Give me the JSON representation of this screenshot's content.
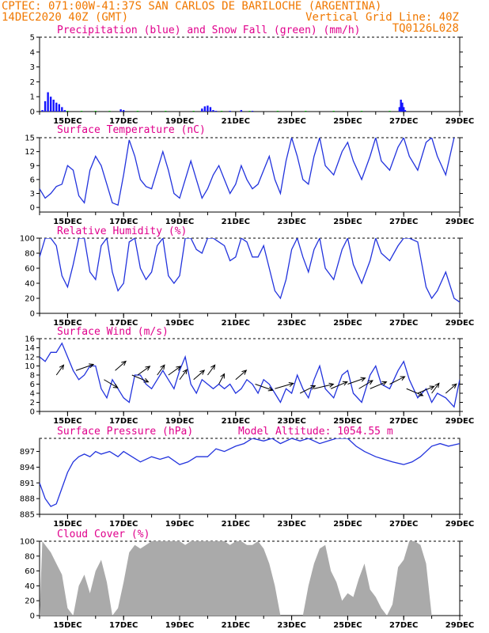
{
  "header": {
    "line1_left": "CPTEC:   071:00W-41:37S  SAN CARLOS DE BARILOCHE (ARGENTINA)",
    "line2_left": "14DEC2020 40Z (GMT)",
    "line2_right": "Vertical Grid Line: 40Z",
    "code": "TQ0126L028"
  },
  "colors": {
    "header": "#f07800",
    "title": "#e0008c",
    "precip": "#1414ff",
    "snow": "#00b400",
    "line": "#2233dd",
    "wind_arrow": "#000000",
    "cloud": "#aaaaaa"
  },
  "x_axis": {
    "tick_labels": [
      "15DEC",
      "17DEC",
      "19DEC",
      "21DEC",
      "23DEC",
      "25DEC",
      "27DEC",
      "29DEC"
    ],
    "tick_days": [
      15,
      17,
      19,
      21,
      23,
      25,
      27,
      29
    ],
    "start_day": 14,
    "end_day": 29
  },
  "chart_data": [
    {
      "id": "precip",
      "type": "bar",
      "title": "Precipitation (blue) and Snow Fall (green) (mm/h)",
      "ylim": [
        0,
        5
      ],
      "yticks": [
        "0",
        "1",
        "2",
        "3",
        "4",
        "5"
      ],
      "series": [
        {
          "name": "Precipitation",
          "x": [
            14.1,
            14.2,
            14.3,
            14.4,
            14.5,
            14.6,
            14.7,
            14.8,
            14.9,
            16.9,
            17.0,
            19.8,
            19.9,
            20.0,
            20.1,
            20.2,
            20.3,
            20.8,
            21.2,
            21.6,
            26.85,
            26.9,
            26.95,
            27.0,
            27.05
          ],
          "values": [
            0.1,
            0.7,
            1.3,
            1.0,
            0.8,
            0.6,
            0.5,
            0.3,
            0.1,
            0.15,
            0.1,
            0.2,
            0.35,
            0.4,
            0.3,
            0.1,
            0.05,
            0.05,
            0.1,
            0.05,
            0.3,
            0.8,
            0.6,
            0.3,
            0.1
          ]
        },
        {
          "name": "Snow Fall",
          "x": [
            15.0,
            15.5,
            16.0,
            16.5,
            17.5,
            18.5,
            19.5,
            20.5,
            21.5,
            22.5,
            23.5,
            24.5,
            25.5,
            26.5
          ],
          "values": [
            0.05,
            0.05,
            0.05,
            0.05,
            0.05,
            0.05,
            0.05,
            0.05,
            0.05,
            0.05,
            0.05,
            0.05,
            0.05,
            0.05
          ]
        }
      ]
    },
    {
      "id": "temp",
      "type": "line",
      "title": "Surface Temperature (nC)",
      "ylim": [
        -1,
        15
      ],
      "yticks": [
        "0",
        "3",
        "6",
        "9",
        "12",
        "15"
      ],
      "x": [
        14.0,
        14.2,
        14.4,
        14.6,
        14.8,
        15.0,
        15.2,
        15.4,
        15.6,
        15.8,
        16.0,
        16.2,
        16.4,
        16.6,
        16.8,
        17.0,
        17.2,
        17.4,
        17.6,
        17.8,
        18.0,
        18.2,
        18.4,
        18.6,
        18.8,
        19.0,
        19.2,
        19.4,
        19.6,
        19.8,
        20.0,
        20.2,
        20.4,
        20.6,
        20.8,
        21.0,
        21.2,
        21.4,
        21.6,
        21.8,
        22.0,
        22.2,
        22.4,
        22.6,
        22.8,
        23.0,
        23.2,
        23.4,
        23.6,
        23.8,
        24.0,
        24.2,
        24.5,
        24.8,
        25.0,
        25.2,
        25.5,
        25.8,
        26.0,
        26.2,
        26.5,
        26.8,
        27.0,
        27.2,
        27.5,
        27.8,
        28.0,
        28.2,
        28.5,
        28.8
      ],
      "values": [
        4,
        2,
        3,
        4.5,
        5,
        9,
        8,
        2.5,
        1,
        8,
        11,
        9,
        5,
        1,
        0.5,
        7,
        14.5,
        11,
        6,
        4.5,
        4,
        8,
        12,
        8,
        3,
        2,
        6,
        10,
        6,
        2,
        4,
        7,
        9,
        6,
        3,
        5,
        9,
        6,
        4,
        5,
        8,
        11,
        6,
        3,
        10,
        15,
        11,
        6,
        5,
        11,
        15,
        9,
        7,
        12,
        14,
        10,
        6,
        11,
        15,
        10,
        8,
        13,
        15,
        11,
        8,
        14,
        15,
        11,
        7,
        15
      ]
    },
    {
      "id": "rh",
      "type": "line",
      "title": "Relative Humidity (%)",
      "ylim": [
        0,
        100
      ],
      "yticks": [
        "0",
        "20",
        "40",
        "60",
        "80",
        "100"
      ],
      "x": [
        14.0,
        14.2,
        14.4,
        14.6,
        14.8,
        15.0,
        15.2,
        15.4,
        15.6,
        15.8,
        16.0,
        16.2,
        16.4,
        16.6,
        16.8,
        17.0,
        17.2,
        17.4,
        17.6,
        17.8,
        18.0,
        18.2,
        18.4,
        18.6,
        18.8,
        19.0,
        19.2,
        19.4,
        19.6,
        19.8,
        20.0,
        20.2,
        20.4,
        20.6,
        20.8,
        21.0,
        21.2,
        21.4,
        21.6,
        21.8,
        22.0,
        22.2,
        22.4,
        22.6,
        22.8,
        23.0,
        23.2,
        23.4,
        23.6,
        23.8,
        24.0,
        24.2,
        24.5,
        24.8,
        25.0,
        25.2,
        25.5,
        25.8,
        26.0,
        26.2,
        26.5,
        26.8,
        27.0,
        27.2,
        27.5,
        27.8,
        28.0,
        28.2,
        28.5,
        28.8,
        29.0
      ],
      "values": [
        75,
        100,
        100,
        90,
        50,
        35,
        65,
        100,
        100,
        55,
        45,
        90,
        100,
        55,
        30,
        40,
        95,
        100,
        60,
        45,
        55,
        90,
        100,
        50,
        40,
        50,
        100,
        100,
        85,
        80,
        100,
        100,
        95,
        90,
        70,
        75,
        100,
        95,
        75,
        75,
        90,
        60,
        30,
        20,
        45,
        85,
        100,
        75,
        55,
        85,
        100,
        60,
        45,
        85,
        100,
        65,
        40,
        70,
        100,
        80,
        70,
        90,
        100,
        100,
        95,
        35,
        20,
        30,
        55,
        20,
        15
      ]
    },
    {
      "id": "wind",
      "type": "line",
      "title": "Surface Wind (m/s)",
      "ylim": [
        0,
        16
      ],
      "yticks": [
        "0",
        "2",
        "4",
        "6",
        "8",
        "10",
        "12",
        "14",
        "16"
      ],
      "x": [
        14.0,
        14.2,
        14.4,
        14.6,
        14.8,
        15.0,
        15.2,
        15.4,
        15.6,
        15.8,
        16.0,
        16.2,
        16.4,
        16.6,
        16.8,
        17.0,
        17.2,
        17.4,
        17.6,
        17.8,
        18.0,
        18.2,
        18.4,
        18.6,
        18.8,
        19.0,
        19.2,
        19.4,
        19.6,
        19.8,
        20.0,
        20.2,
        20.4,
        20.6,
        20.8,
        21.0,
        21.2,
        21.4,
        21.6,
        21.8,
        22.0,
        22.2,
        22.4,
        22.6,
        22.8,
        23.0,
        23.2,
        23.4,
        23.6,
        23.8,
        24.0,
        24.2,
        24.5,
        24.8,
        25.0,
        25.2,
        25.5,
        25.8,
        26.0,
        26.2,
        26.5,
        26.8,
        27.0,
        27.2,
        27.5,
        27.8,
        28.0,
        28.2,
        28.5,
        28.8,
        29.0
      ],
      "values": [
        12,
        11,
        13,
        13,
        15,
        12,
        9,
        7,
        8,
        10,
        10,
        5,
        3,
        7,
        5,
        3,
        2,
        8,
        8,
        6,
        5,
        7,
        9,
        7,
        5,
        9,
        12,
        6,
        4,
        7,
        6,
        5,
        6,
        5,
        6,
        4,
        5,
        7,
        6,
        4,
        7,
        6,
        4,
        2,
        5,
        4,
        8,
        5,
        3,
        7,
        10,
        5,
        3,
        8,
        9,
        4,
        2,
        8,
        10,
        6,
        5,
        9,
        11,
        7,
        3,
        5,
        2,
        4,
        3,
        1,
        7
      ],
      "arrows": [
        {
          "x": 14.6,
          "speed": 8,
          "dir": 70
        },
        {
          "x": 15.3,
          "speed": 9,
          "dir": 35
        },
        {
          "x": 16.3,
          "speed": 7,
          "dir": -50
        },
        {
          "x": 16.7,
          "speed": 9,
          "dir": 60
        },
        {
          "x": 17.3,
          "speed": 8,
          "dir": -40
        },
        {
          "x": 17.5,
          "speed": 8,
          "dir": 55
        },
        {
          "x": 18.2,
          "speed": 8,
          "dir": 70
        },
        {
          "x": 18.6,
          "speed": 8,
          "dir": 55
        },
        {
          "x": 19.0,
          "speed": 7,
          "dir": 70
        },
        {
          "x": 19.5,
          "speed": 7,
          "dir": 60
        },
        {
          "x": 20.0,
          "speed": 8,
          "dir": 70
        },
        {
          "x": 20.4,
          "speed": 6,
          "dir": 75
        },
        {
          "x": 21.0,
          "speed": 7,
          "dir": 60
        },
        {
          "x": 21.7,
          "speed": 6,
          "dir": -35
        },
        {
          "x": 22.4,
          "speed": 5,
          "dir": 30
        },
        {
          "x": 23.3,
          "speed": 4,
          "dir": 45
        },
        {
          "x": 23.8,
          "speed": 5,
          "dir": 25
        },
        {
          "x": 24.4,
          "speed": 5,
          "dir": 40
        },
        {
          "x": 25.0,
          "speed": 6,
          "dir": 35
        },
        {
          "x": 25.4,
          "speed": 5,
          "dir": 50
        },
        {
          "x": 25.8,
          "speed": 5,
          "dir": 40
        },
        {
          "x": 26.5,
          "speed": 6,
          "dir": 45
        },
        {
          "x": 27.1,
          "speed": 5,
          "dir": -40
        },
        {
          "x": 27.5,
          "speed": 4,
          "dir": 40
        },
        {
          "x": 28.0,
          "speed": 4,
          "dir": 70
        },
        {
          "x": 28.5,
          "speed": 4,
          "dir": 60
        }
      ]
    },
    {
      "id": "pres",
      "type": "line",
      "title": "Surface Pressure (hPa)",
      "annotation": "Model Altitude: 1054.55 m",
      "ylim": [
        885,
        899.5
      ],
      "yticks": [
        "885",
        "888",
        "891",
        "894",
        "897"
      ],
      "x": [
        14.0,
        14.2,
        14.4,
        14.6,
        14.8,
        15.0,
        15.2,
        15.4,
        15.6,
        15.8,
        16.0,
        16.2,
        16.5,
        16.8,
        17.0,
        17.3,
        17.6,
        18.0,
        18.3,
        18.6,
        19.0,
        19.3,
        19.6,
        20.0,
        20.3,
        20.6,
        21.0,
        21.3,
        21.6,
        22.0,
        22.3,
        22.6,
        23.0,
        23.3,
        23.6,
        24.0,
        24.3,
        24.6,
        25.0,
        25.3,
        25.6,
        26.0,
        26.3,
        26.6,
        27.0,
        27.3,
        27.6,
        28.0,
        28.3,
        28.6,
        29.0
      ],
      "values": [
        891,
        888,
        886.5,
        887,
        890,
        893,
        895,
        896,
        896.5,
        896,
        897,
        896.5,
        897,
        896,
        897,
        896,
        895,
        896,
        895.5,
        896,
        894.5,
        895,
        896,
        896,
        897.5,
        897,
        898,
        898.5,
        899.5,
        899,
        899.5,
        898.5,
        899.5,
        899,
        899.5,
        898.5,
        899,
        899.5,
        899.5,
        898,
        897,
        896,
        895.5,
        895,
        894.5,
        895,
        896,
        898,
        898.5,
        898,
        898.5
      ]
    },
    {
      "id": "cloud",
      "type": "area",
      "title": "Cloud Cover (%)",
      "ylim": [
        0,
        100
      ],
      "yticks": [
        "0",
        "20",
        "40",
        "60",
        "80",
        "100"
      ],
      "x": [
        14.0,
        14.1,
        14.2,
        14.4,
        14.6,
        14.8,
        15.0,
        15.2,
        15.4,
        15.6,
        15.8,
        16.0,
        16.2,
        16.4,
        16.6,
        16.8,
        17.0,
        17.2,
        17.4,
        17.6,
        17.8,
        18.0,
        18.2,
        18.4,
        18.6,
        18.8,
        19.0,
        19.2,
        19.4,
        19.6,
        19.8,
        20.0,
        20.2,
        20.4,
        20.6,
        20.8,
        21.0,
        21.2,
        21.4,
        21.6,
        21.8,
        22.0,
        22.2,
        22.4,
        22.6,
        22.8,
        23.0,
        23.2,
        23.4,
        23.6,
        23.8,
        24.0,
        24.2,
        24.4,
        24.6,
        24.8,
        25.0,
        25.2,
        25.4,
        25.6,
        25.8,
        26.0,
        26.2,
        26.4,
        26.6,
        26.8,
        27.0,
        27.2,
        27.4,
        27.6,
        27.8,
        28.0
      ],
      "values": [
        0,
        100,
        95,
        85,
        70,
        55,
        10,
        0,
        40,
        55,
        30,
        60,
        75,
        45,
        0,
        10,
        45,
        85,
        95,
        90,
        95,
        100,
        100,
        100,
        100,
        100,
        100,
        95,
        100,
        100,
        100,
        100,
        100,
        100,
        100,
        95,
        100,
        100,
        95,
        95,
        100,
        90,
        70,
        40,
        0,
        0,
        0,
        0,
        0,
        40,
        70,
        90,
        95,
        60,
        45,
        20,
        30,
        25,
        50,
        70,
        35,
        25,
        10,
        0,
        15,
        65,
        75,
        100,
        100,
        95,
        70,
        0
      ]
    }
  ]
}
